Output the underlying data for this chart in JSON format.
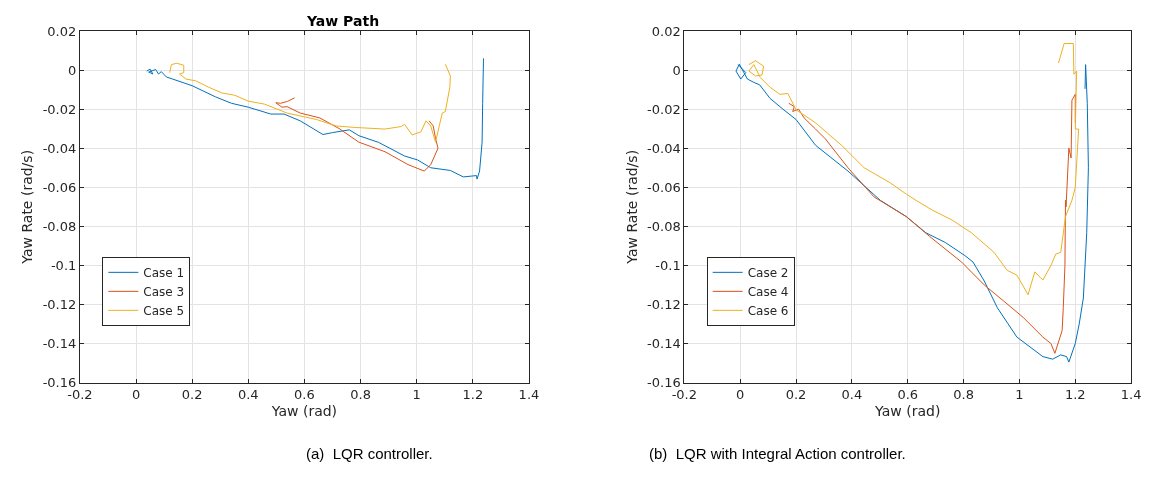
{
  "chart_data": [
    {
      "type": "line",
      "title": "Yaw Path",
      "xlabel": "Yaw (rad)",
      "ylabel": "Yaw Rate (rad/s)",
      "xlim": [
        -0.2,
        1.4
      ],
      "ylim": [
        -0.16,
        0.02
      ],
      "xticks": [
        -0.2,
        0,
        0.2,
        0.4,
        0.6,
        0.8,
        1,
        1.2,
        1.4
      ],
      "yticks": [
        -0.16,
        -0.14,
        -0.12,
        -0.1,
        -0.08,
        -0.06,
        -0.04,
        -0.02,
        0,
        0.02
      ],
      "grid": true,
      "legend": "bottom left",
      "annotations": [
        "(a)  LQR controller."
      ],
      "series": [
        {
          "name": "Case 1",
          "color": "#0072bd",
          "x": [
            0.038,
            0.05,
            0.06,
            0.045,
            0.07,
            0.08,
            0.09,
            0.108,
            0.2,
            0.283,
            0.34,
            0.4,
            0.48,
            0.527,
            0.585,
            0.666,
            0.7,
            0.76,
            0.794,
            0.864,
            0.957,
            1.003,
            1.05,
            1.12,
            1.166,
            1.213,
            1.215,
            1.224,
            1.233,
            1.235,
            1.238
          ],
          "values": [
            -0.0005,
            0.0005,
            -0.002,
            -0.001,
            0.0003,
            -0.002,
            -0.0008,
            -0.0035,
            -0.008,
            -0.0137,
            -0.017,
            -0.019,
            -0.0225,
            -0.0225,
            -0.026,
            -0.033,
            -0.032,
            -0.0306,
            -0.0336,
            -0.037,
            -0.044,
            -0.046,
            -0.05,
            -0.0514,
            -0.0547,
            -0.054,
            -0.0558,
            -0.0517,
            -0.037,
            -0.017,
            0.006
          ]
        },
        {
          "name": "Case 3",
          "color": "#d95319",
          "x": [
            0.565,
            0.54,
            0.515,
            0.498,
            0.52,
            0.538,
            0.585,
            0.655,
            0.724,
            0.794,
            0.887,
            0.969,
            1.027,
            1.05,
            1.076,
            1.067,
            1.059,
            1.044
          ],
          "values": [
            -0.0142,
            -0.016,
            -0.017,
            -0.0167,
            -0.019,
            -0.0187,
            -0.022,
            -0.0245,
            -0.03,
            -0.0369,
            -0.0418,
            -0.0484,
            -0.0517,
            -0.0484,
            -0.04,
            -0.035,
            -0.0286,
            -0.026
          ]
        },
        {
          "name": "Case 5",
          "color": "#edb120",
          "x": [
            0.12,
            0.126,
            0.145,
            0.17,
            0.17,
            0.155,
            0.178,
            0.213,
            0.259,
            0.306,
            0.352,
            0.4,
            0.457,
            0.538,
            0.643,
            0.713,
            0.783,
            0.887,
            0.945,
            0.957,
            0.984,
            1.015,
            1.033,
            1.05,
            1.067,
            1.091,
            1.102,
            1.118,
            1.12,
            1.102
          ],
          "values": [
            -0.0013,
            0.0028,
            0.0035,
            0.0025,
            -0.0013,
            -0.002,
            -0.0046,
            -0.0055,
            -0.0088,
            -0.0117,
            -0.0129,
            -0.0159,
            -0.0174,
            -0.022,
            -0.0253,
            -0.0286,
            -0.0294,
            -0.0302,
            -0.0289,
            -0.0278,
            -0.0332,
            -0.0316,
            -0.026,
            -0.0286,
            -0.0369,
            -0.022,
            -0.0212,
            -0.0088,
            -0.003,
            0.003
          ]
        }
      ]
    },
    {
      "type": "line",
      "xlabel": "Yaw (rad)",
      "ylabel": "Yaw Rate (rad/s)",
      "xlim": [
        -0.2,
        1.4
      ],
      "ylim": [
        -0.16,
        0.02
      ],
      "xticks": [
        -0.2,
        0,
        0.2,
        0.4,
        0.6,
        0.8,
        1,
        1.2,
        1.4
      ],
      "yticks": [
        -0.16,
        -0.14,
        -0.12,
        -0.1,
        -0.08,
        -0.06,
        -0.04,
        -0.02,
        0,
        0.02
      ],
      "grid": true,
      "legend": "bottom left",
      "annotations": [
        "(b)  LQR with Integral Action controller."
      ],
      "series": [
        {
          "name": "Case 2",
          "color": "#0072bd",
          "x": [
            -0.007,
            0.02,
            0.002,
            -0.015,
            -0.003,
            0.026,
            0.049,
            0.07,
            0.107,
            0.153,
            0.2,
            0.27,
            0.386,
            0.502,
            0.595,
            0.665,
            0.735,
            0.805,
            0.834,
            0.874,
            0.921,
            0.991,
            1.084,
            1.119,
            1.148,
            1.169,
            1.177,
            1.2,
            1.214,
            1.229,
            1.241,
            1.247,
            1.243,
            1.237,
            1.235
          ],
          "values": [
            0.0028,
            -0.0013,
            -0.0046,
            -0.0005,
            0.003,
            -0.0046,
            -0.0063,
            -0.0076,
            -0.0145,
            -0.02,
            -0.0253,
            -0.0385,
            -0.0517,
            -0.0667,
            -0.075,
            -0.0833,
            -0.0883,
            -0.095,
            -0.0983,
            -0.108,
            -0.1217,
            -0.1367,
            -0.1467,
            -0.148,
            -0.1458,
            -0.1467,
            -0.1495,
            -0.14,
            -0.13,
            -0.1167,
            -0.0833,
            -0.05,
            -0.017,
            0.0028,
            -0.0096
          ]
        },
        {
          "name": "Case 4",
          "color": "#d95319",
          "x": [
            0.174,
            0.194,
            0.188,
            0.209,
            0.229,
            0.27,
            0.305,
            0.386,
            0.479,
            0.595,
            0.677,
            0.793,
            0.874,
            0.944,
            1.014,
            1.084,
            1.113,
            1.127,
            1.142,
            1.153,
            1.157,
            1.163,
            1.165,
            1.167,
            1.177,
            1.185,
            1.188,
            1.2,
            1.2
          ],
          "values": [
            -0.017,
            -0.0187,
            -0.0212,
            -0.02,
            -0.0245,
            -0.0302,
            -0.0352,
            -0.05,
            -0.0649,
            -0.075,
            -0.085,
            -0.0983,
            -0.11,
            -0.1183,
            -0.1267,
            -0.1367,
            -0.14,
            -0.145,
            -0.1383,
            -0.1333,
            -0.1217,
            -0.1,
            -0.0667,
            -0.07,
            -0.04,
            -0.045,
            -0.0154,
            -0.0124,
            -0.027
          ]
        },
        {
          "name": "Case 6",
          "color": "#edb120",
          "x": [
            0.031,
            0.055,
            0.084,
            0.078,
            0.055,
            0.031,
            0.049,
            0.072,
            0.107,
            0.142,
            0.171,
            0.2,
            0.27,
            0.363,
            0.444,
            0.537,
            0.595,
            0.63,
            0.688,
            0.758,
            0.828,
            0.909,
            0.956,
            0.991,
            1.031,
            1.055,
            1.084,
            1.113,
            1.13,
            1.148,
            1.165,
            1.188,
            1.2,
            1.212,
            1.2,
            1.205,
            1.195,
            1.193,
            1.16,
            1.14
          ],
          "values": [
            0.0028,
            0.0048,
            0.002,
            -0.0025,
            -0.003,
            -0.0005,
            0.0028,
            -0.0038,
            -0.0088,
            -0.0124,
            -0.012,
            -0.0203,
            -0.027,
            -0.0385,
            -0.05,
            -0.0577,
            -0.0635,
            -0.0667,
            -0.0717,
            -0.0767,
            -0.0833,
            -0.0933,
            -0.1025,
            -0.105,
            -0.115,
            -0.1033,
            -0.1075,
            -0.1,
            -0.0942,
            -0.0933,
            -0.075,
            -0.0667,
            -0.06,
            -0.0302,
            -0.0302,
            -0.0005,
            -0.0021,
            0.0136,
            0.0136,
            0.0036
          ]
        }
      ]
    }
  ]
}
